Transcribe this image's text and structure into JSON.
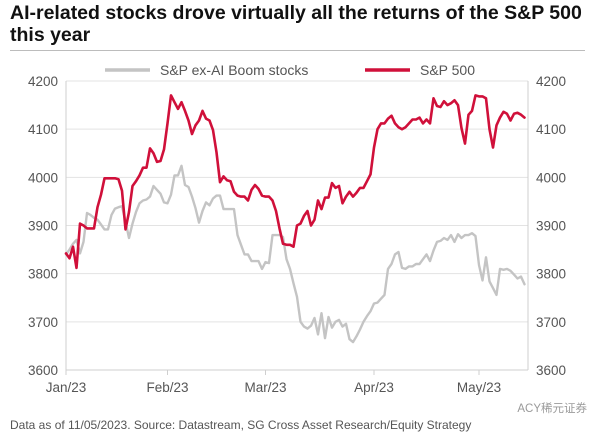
{
  "title": "AI-related stocks drove virtually all the returns of the S&P 500 this year",
  "footnote": "Data as of 11/05/2023. Source: Datastream, SG Cross Asset Research/Equity Strategy",
  "watermark": "ACY稀元证券",
  "colors": {
    "sp500": "#d0103a",
    "ex_ai": "#c4c4c4",
    "grid": "#e3e3e3",
    "axis": "#cfcfcf"
  },
  "chart_data": {
    "type": "line",
    "title": "AI-related stocks drove virtually all the returns of the S&P 500 this year",
    "xlabel": "",
    "ylabel": "",
    "ylim": [
      3600,
      4200
    ],
    "yticks": [
      3600,
      3700,
      3800,
      3900,
      4000,
      4100,
      4200
    ],
    "xlim": [
      0,
      132
    ],
    "xticks": [
      {
        "label": "Jan/23",
        "x": 0
      },
      {
        "label": "Feb/23",
        "x": 29
      },
      {
        "label": "Mar/23",
        "x": 57
      },
      {
        "label": "Apr/23",
        "x": 88
      },
      {
        "label": "May/23",
        "x": 118
      }
    ],
    "grid": "horizontal",
    "legend": "top",
    "series": [
      {
        "name": "S&P ex-AI Boom stocks",
        "color_key": "ex_ai",
        "points": [
          [
            0,
            3840
          ],
          [
            1,
            3850
          ],
          [
            2,
            3862
          ],
          [
            3,
            3870
          ],
          [
            4,
            3842
          ],
          [
            5,
            3866
          ],
          [
            6,
            3926
          ],
          [
            7,
            3922
          ],
          [
            8,
            3916
          ],
          [
            9,
            3912
          ],
          [
            10,
            3902
          ],
          [
            11,
            3892
          ],
          [
            12,
            3892
          ],
          [
            13,
            3922
          ],
          [
            14,
            3935
          ],
          [
            15,
            3938
          ],
          [
            16,
            3940
          ],
          [
            17,
            3908
          ],
          [
            18,
            3874
          ],
          [
            19,
            3904
          ],
          [
            20,
            3928
          ],
          [
            21,
            3946
          ],
          [
            22,
            3952
          ],
          [
            23,
            3954
          ],
          [
            24,
            3960
          ],
          [
            25,
            3982
          ],
          [
            26,
            3974
          ],
          [
            27,
            3966
          ],
          [
            28,
            3948
          ],
          [
            29,
            3946
          ],
          [
            30,
            3964
          ],
          [
            31,
            4004
          ],
          [
            32,
            4004
          ],
          [
            33,
            4024
          ],
          [
            34,
            3984
          ],
          [
            35,
            3980
          ],
          [
            36,
            3960
          ],
          [
            37,
            3936
          ],
          [
            38,
            3906
          ],
          [
            39,
            3930
          ],
          [
            40,
            3948
          ],
          [
            41,
            3942
          ],
          [
            42,
            3956
          ],
          [
            43,
            3962
          ],
          [
            44,
            3962
          ],
          [
            45,
            3934
          ],
          [
            46,
            3934
          ],
          [
            47,
            3934
          ],
          [
            48,
            3934
          ],
          [
            49,
            3880
          ],
          [
            50,
            3860
          ],
          [
            51,
            3840
          ],
          [
            52,
            3840
          ],
          [
            53,
            3826
          ],
          [
            54,
            3826
          ],
          [
            55,
            3826
          ],
          [
            56,
            3810
          ],
          [
            57,
            3824
          ],
          [
            58,
            3822
          ],
          [
            59,
            3880
          ],
          [
            60,
            3880
          ],
          [
            61,
            3880
          ],
          [
            62,
            3876
          ],
          [
            63,
            3830
          ],
          [
            64,
            3810
          ],
          [
            65,
            3780
          ],
          [
            66,
            3752
          ],
          [
            67,
            3700
          ],
          [
            68,
            3690
          ],
          [
            69,
            3686
          ],
          [
            70,
            3692
          ],
          [
            71,
            3708
          ],
          [
            72,
            3674
          ],
          [
            73,
            3718
          ],
          [
            74,
            3666
          ],
          [
            75,
            3710
          ],
          [
            76,
            3688
          ],
          [
            77,
            3700
          ],
          [
            78,
            3704
          ],
          [
            79,
            3690
          ],
          [
            80,
            3696
          ],
          [
            81,
            3664
          ],
          [
            82,
            3658
          ],
          [
            83,
            3670
          ],
          [
            84,
            3684
          ],
          [
            85,
            3700
          ],
          [
            86,
            3712
          ],
          [
            87,
            3722
          ],
          [
            88,
            3738
          ],
          [
            89,
            3740
          ],
          [
            90,
            3748
          ],
          [
            91,
            3756
          ],
          [
            92,
            3810
          ],
          [
            93,
            3820
          ],
          [
            94,
            3840
          ],
          [
            95,
            3845
          ],
          [
            96,
            3812
          ],
          [
            97,
            3810
          ],
          [
            98,
            3815
          ],
          [
            99,
            3815
          ],
          [
            100,
            3820
          ],
          [
            101,
            3820
          ],
          [
            102,
            3830
          ],
          [
            103,
            3840
          ],
          [
            104,
            3826
          ],
          [
            105,
            3848
          ],
          [
            106,
            3866
          ],
          [
            107,
            3868
          ],
          [
            108,
            3874
          ],
          [
            109,
            3870
          ],
          [
            110,
            3880
          ],
          [
            111,
            3866
          ],
          [
            112,
            3882
          ],
          [
            113,
            3874
          ],
          [
            114,
            3880
          ],
          [
            115,
            3880
          ],
          [
            116,
            3884
          ],
          [
            117,
            3878
          ],
          [
            118,
            3818
          ],
          [
            119,
            3786
          ],
          [
            120,
            3834
          ],
          [
            121,
            3784
          ],
          [
            122,
            3770
          ],
          [
            123,
            3756
          ],
          [
            124,
            3810
          ],
          [
            125,
            3808
          ],
          [
            126,
            3810
          ],
          [
            127,
            3806
          ],
          [
            128,
            3798
          ],
          [
            129,
            3790
          ],
          [
            130,
            3794
          ],
          [
            131,
            3778
          ]
        ]
      },
      {
        "name": "S&P 500",
        "color_key": "sp500",
        "points": [
          [
            0,
            3842
          ],
          [
            1,
            3832
          ],
          [
            2,
            3856
          ],
          [
            3,
            3812
          ],
          [
            4,
            3904
          ],
          [
            5,
            3900
          ],
          [
            6,
            3894
          ],
          [
            7,
            3894
          ],
          [
            8,
            3894
          ],
          [
            9,
            3938
          ],
          [
            10,
            3964
          ],
          [
            11,
            3998
          ],
          [
            12,
            3998
          ],
          [
            13,
            3998
          ],
          [
            14,
            3998
          ],
          [
            15,
            3996
          ],
          [
            16,
            3972
          ],
          [
            17,
            3892
          ],
          [
            18,
            3928
          ],
          [
            19,
            3982
          ],
          [
            20,
            3992
          ],
          [
            21,
            4004
          ],
          [
            22,
            4020
          ],
          [
            23,
            4020
          ],
          [
            24,
            4060
          ],
          [
            25,
            4050
          ],
          [
            26,
            4032
          ],
          [
            27,
            4034
          ],
          [
            28,
            4058
          ],
          [
            29,
            4112
          ],
          [
            30,
            4170
          ],
          [
            31,
            4156
          ],
          [
            32,
            4142
          ],
          [
            33,
            4156
          ],
          [
            34,
            4138
          ],
          [
            35,
            4118
          ],
          [
            36,
            4090
          ],
          [
            37,
            4108
          ],
          [
            38,
            4118
          ],
          [
            39,
            4138
          ],
          [
            40,
            4122
          ],
          [
            41,
            4118
          ],
          [
            42,
            4098
          ],
          [
            43,
            4052
          ],
          [
            44,
            3990
          ],
          [
            45,
            4002
          ],
          [
            46,
            3994
          ],
          [
            47,
            3992
          ],
          [
            48,
            3970
          ],
          [
            49,
            3962
          ],
          [
            50,
            3960
          ],
          [
            51,
            3960
          ],
          [
            52,
            3952
          ],
          [
            53,
            3974
          ],
          [
            54,
            3984
          ],
          [
            55,
            3976
          ],
          [
            56,
            3962
          ],
          [
            57,
            3960
          ],
          [
            58,
            3960
          ],
          [
            59,
            3952
          ],
          [
            60,
            3930
          ],
          [
            61,
            3894
          ],
          [
            62,
            3862
          ],
          [
            63,
            3860
          ],
          [
            64,
            3860
          ],
          [
            65,
            3856
          ],
          [
            66,
            3900
          ],
          [
            67,
            3904
          ],
          [
            68,
            3920
          ],
          [
            69,
            3930
          ],
          [
            70,
            3900
          ],
          [
            71,
            3912
          ],
          [
            72,
            3952
          ],
          [
            73,
            3934
          ],
          [
            74,
            3958
          ],
          [
            75,
            3958
          ],
          [
            76,
            3988
          ],
          [
            77,
            3978
          ],
          [
            78,
            3982
          ],
          [
            79,
            3946
          ],
          [
            80,
            3960
          ],
          [
            81,
            3970
          ],
          [
            82,
            3960
          ],
          [
            83,
            3968
          ],
          [
            84,
            3978
          ],
          [
            85,
            3978
          ],
          [
            86,
            3992
          ],
          [
            87,
            4006
          ],
          [
            88,
            4062
          ],
          [
            89,
            4100
          ],
          [
            90,
            4112
          ],
          [
            91,
            4112
          ],
          [
            92,
            4122
          ],
          [
            93,
            4128
          ],
          [
            94,
            4112
          ],
          [
            95,
            4104
          ],
          [
            96,
            4100
          ],
          [
            97,
            4104
          ],
          [
            98,
            4112
          ],
          [
            99,
            4120
          ],
          [
            100,
            4120
          ],
          [
            101,
            4124
          ],
          [
            102,
            4112
          ],
          [
            103,
            4120
          ],
          [
            104,
            4112
          ],
          [
            105,
            4164
          ],
          [
            106,
            4148
          ],
          [
            107,
            4146
          ],
          [
            108,
            4158
          ],
          [
            109,
            4150
          ],
          [
            110,
            4154
          ],
          [
            111,
            4160
          ],
          [
            112,
            4150
          ],
          [
            113,
            4102
          ],
          [
            114,
            4070
          ],
          [
            115,
            4130
          ],
          [
            116,
            4138
          ],
          [
            117,
            4170
          ],
          [
            118,
            4168
          ],
          [
            119,
            4168
          ],
          [
            120,
            4164
          ],
          [
            121,
            4100
          ],
          [
            122,
            4062
          ],
          [
            123,
            4108
          ],
          [
            124,
            4124
          ],
          [
            125,
            4136
          ],
          [
            126,
            4132
          ],
          [
            127,
            4118
          ],
          [
            128,
            4132
          ],
          [
            129,
            4134
          ],
          [
            130,
            4130
          ],
          [
            131,
            4124
          ]
        ]
      }
    ]
  }
}
